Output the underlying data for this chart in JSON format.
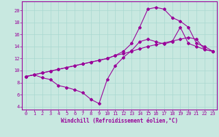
{
  "background_color": "#c8e8e0",
  "grid_color": "#a8d8d0",
  "line_color": "#990099",
  "xlabel": "Windchill (Refroidissement éolien,°C)",
  "xlim": [
    -0.5,
    23.5
  ],
  "ylim": [
    3.5,
    21.5
  ],
  "yticks": [
    4,
    6,
    8,
    10,
    12,
    14,
    16,
    18,
    20
  ],
  "xticks": [
    0,
    1,
    2,
    3,
    4,
    5,
    6,
    7,
    8,
    9,
    10,
    11,
    12,
    13,
    14,
    15,
    16,
    17,
    18,
    19,
    20,
    21,
    22,
    23
  ],
  "line1_x": [
    0,
    1,
    2,
    3,
    4,
    5,
    6,
    7,
    8,
    9,
    10,
    11,
    12,
    13,
    14,
    15,
    16,
    17,
    18,
    19,
    20,
    21,
    22,
    23
  ],
  "line1_y": [
    9.0,
    9.3,
    8.8,
    8.5,
    7.5,
    7.2,
    6.8,
    6.3,
    5.2,
    4.5,
    8.5,
    10.8,
    12.2,
    13.3,
    14.8,
    15.2,
    14.8,
    14.4,
    14.8,
    17.2,
    14.5,
    14.0,
    13.5,
    13.2
  ],
  "line2_x": [
    0,
    1,
    2,
    3,
    4,
    5,
    6,
    7,
    8,
    9,
    10,
    11,
    12,
    13,
    14,
    15,
    16,
    17,
    18,
    19,
    20,
    21,
    22,
    23
  ],
  "line2_y": [
    9.0,
    9.3,
    9.6,
    9.9,
    10.2,
    10.5,
    10.8,
    11.1,
    11.4,
    11.7,
    12.0,
    12.5,
    13.2,
    14.5,
    17.2,
    20.2,
    20.5,
    20.2,
    18.8,
    18.2,
    17.2,
    14.5,
    14.0,
    13.2
  ],
  "line3_x": [
    0,
    1,
    2,
    3,
    4,
    5,
    6,
    7,
    8,
    9,
    10,
    11,
    12,
    13,
    14,
    15,
    16,
    17,
    18,
    19,
    20,
    21,
    22,
    23
  ],
  "line3_y": [
    9.0,
    9.3,
    9.6,
    9.9,
    10.2,
    10.5,
    10.8,
    11.1,
    11.4,
    11.7,
    12.0,
    12.5,
    12.8,
    13.2,
    13.6,
    14.0,
    14.3,
    14.6,
    14.9,
    15.2,
    15.5,
    15.2,
    13.5,
    13.2
  ]
}
